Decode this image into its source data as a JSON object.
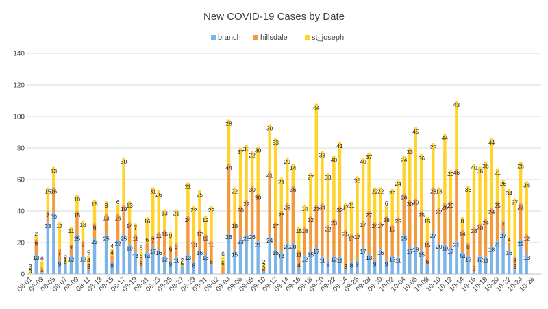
{
  "chart_data": {
    "type": "bar",
    "stacked": true,
    "title": "New COVID-19 Cases by Date",
    "xlabel": "",
    "ylabel": "",
    "ylim": [
      0,
      140
    ],
    "yticks": [
      0,
      20,
      40,
      60,
      80,
      100,
      120,
      140
    ],
    "grid": true,
    "legend_position": "top",
    "x_tick_every": 2,
    "categories": [
      "08-01",
      "08-02",
      "08-03",
      "08-04",
      "08-05",
      "08-06",
      "08-07",
      "08-08",
      "08-09",
      "08-10",
      "08-11",
      "08-12",
      "08-13",
      "08-14",
      "08-15",
      "08-16",
      "08-17",
      "08-18",
      "08-19",
      "08-20",
      "08-21",
      "08-22",
      "08-23",
      "08-24",
      "08-25",
      "08-26",
      "08-27",
      "08-28",
      "08-29",
      "08-30",
      "08-31",
      "09-01",
      "09-02",
      "09-03",
      "09-04",
      "09-05",
      "09-06",
      "09-07",
      "09-08",
      "09-09",
      "09-10",
      "09-11",
      "09-12",
      "09-13",
      "09-14",
      "09-15",
      "09-16",
      "09-17",
      "09-18",
      "09-19",
      "09-20",
      "09-21",
      "09-22",
      "09-23",
      "09-24",
      "09-25",
      "09-26",
      "09-27",
      "09-28",
      "09-29",
      "09-30",
      "10-01",
      "10-02",
      "10-03",
      "10-04",
      "10-05",
      "10-06",
      "10-07",
      "10-08",
      "10-09",
      "10-10",
      "10-11",
      "10-12",
      "10-13",
      "10-14",
      "10-15",
      "10-16",
      "10-17",
      "10-18",
      "10-19",
      "10-20",
      "10-21",
      "10-22",
      "10-23",
      "10-24",
      "10-25",
      "10-26",
      "10-27"
    ],
    "series": [
      {
        "name": "branch",
        "color": "#7cb4e8",
        "values": [
          0,
          13,
          1,
          33,
          39,
          9,
          6,
          12,
          25,
          12,
          3,
          23,
          0,
          25,
          8,
          22,
          25,
          19,
          14,
          5,
          14,
          17,
          16,
          12,
          9,
          11,
          5,
          13,
          8,
          16,
          13,
          6,
          0,
          0,
          26,
          15,
          23,
          25,
          26,
          21,
          2,
          24,
          16,
          14,
          20,
          20,
          4,
          12,
          15,
          17,
          11,
          9,
          12,
          11,
          3,
          8,
          9,
          17,
          13,
          9,
          16,
          9,
          12,
          11,
          25,
          17,
          18,
          15,
          6,
          27,
          20,
          19,
          17,
          21,
          14,
          12,
          2,
          12,
          11,
          18,
          21,
          27,
          16,
          3,
          22,
          13,
          0,
          0
        ]
      },
      {
        "name": "hillsdale",
        "color": "#f39a3c",
        "values": [
          0,
          9,
          1,
          7,
          16,
          7,
          1,
          7,
          15,
          9,
          4,
          9,
          0,
          13,
          4,
          16,
          19,
          14,
          11,
          5,
          6,
          7,
          11,
          16,
          9,
          9,
          0,
          24,
          13,
          12,
          12,
          15,
          0,
          5,
          44,
          18,
          20,
          22,
          30,
          30,
          2,
          41,
          17,
          26,
          25,
          36,
          11,
          18,
          22,
          27,
          34,
          22,
          23,
          32,
          25,
          17,
          17,
          17,
          27,
          24,
          17,
          28,
          19,
          25,
          26,
          30,
          30,
          25,
          15,
          28,
          22,
          26,
          29,
          46,
          14,
          8,
          28,
          20,
          24,
          24,
          25,
          7,
          4,
          8,
          23,
          12,
          0,
          0
        ]
      },
      {
        "name": "st_joseph",
        "color": "#ffd32a",
        "values": [
          3,
          2,
          6,
          15,
          13,
          17,
          3,
          11,
          10,
          13,
          5,
          15,
          0,
          8,
          4,
          6,
          30,
          13,
          7,
          5,
          16,
          31,
          26,
          13,
          9,
          21,
          2,
          21,
          22,
          25,
          12,
          22,
          0,
          6,
          28,
          22,
          37,
          35,
          22,
          30,
          2,
          30,
          53,
          21,
          29,
          14,
          15,
          14,
          27,
          64,
          33,
          33,
          40,
          41,
          17,
          21,
          36,
          40,
          37,
          22,
          22,
          6,
          23,
          24,
          24,
          33,
          45,
          36,
          15,
          28,
          13,
          44,
          20,
          43,
          8,
          36,
          40,
          36,
          36,
          44,
          21,
          26,
          34,
          37,
          26,
          34,
          0,
          0
        ]
      }
    ]
  }
}
